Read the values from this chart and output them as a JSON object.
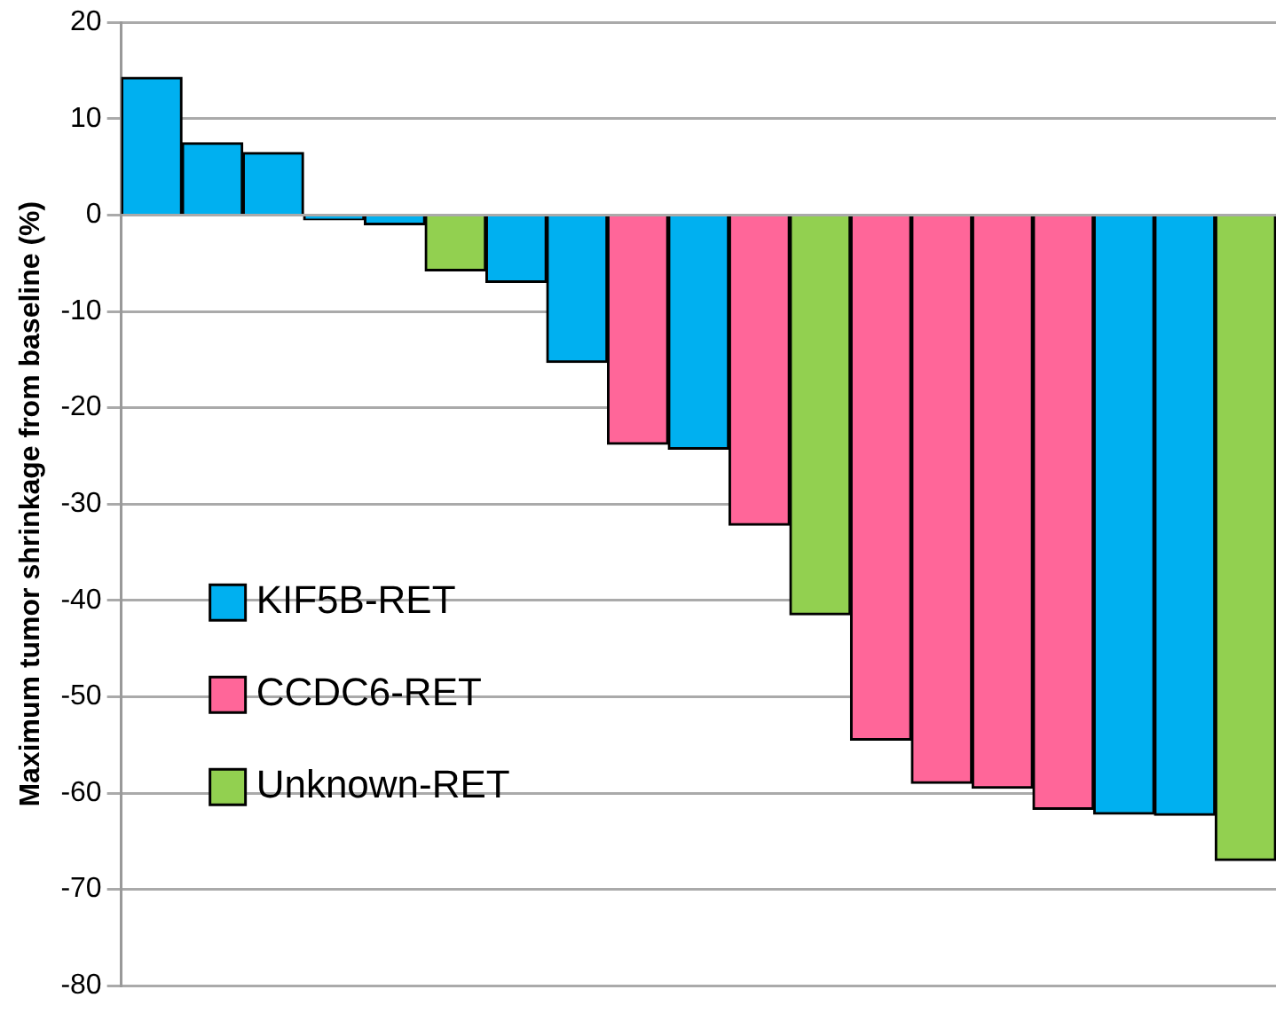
{
  "chart_data": {
    "type": "bar",
    "ylabel": "Maximum tumor shrinkage from baseline (%)",
    "categories": [
      null,
      null,
      null,
      null,
      null,
      null,
      null,
      null,
      null,
      null,
      null,
      null,
      null,
      null,
      null,
      null,
      null,
      null,
      null
    ],
    "series": [
      {
        "name": "KIF5B-RET",
        "color": "#00b0f0",
        "values": [
          14.3,
          7.5,
          6.5,
          -0.5,
          -1,
          null,
          -7,
          -15.3,
          null,
          -24.3,
          null,
          null,
          null,
          null,
          null,
          null,
          -62.2,
          -62.3,
          null
        ]
      },
      {
        "name": "CCDC6-RET",
        "color": "#ff6699",
        "values": [
          null,
          null,
          null,
          null,
          null,
          null,
          null,
          null,
          -23.8,
          null,
          -32.2,
          null,
          -54.5,
          -59,
          -59.5,
          -61.7,
          null,
          null,
          null
        ]
      },
      {
        "name": "Unknown-RET",
        "color": "#92d050",
        "values": [
          null,
          null,
          null,
          null,
          null,
          -5.8,
          null,
          null,
          null,
          null,
          null,
          -41.5,
          null,
          null,
          null,
          null,
          null,
          null,
          -67
        ]
      }
    ],
    "ylim": [
      -80,
      20
    ],
    "yticks": [
      20,
      10,
      0,
      -10,
      -20,
      -30,
      -40,
      -50,
      -60,
      -70,
      -80
    ],
    "grid": "y",
    "legend": "bottom left"
  }
}
